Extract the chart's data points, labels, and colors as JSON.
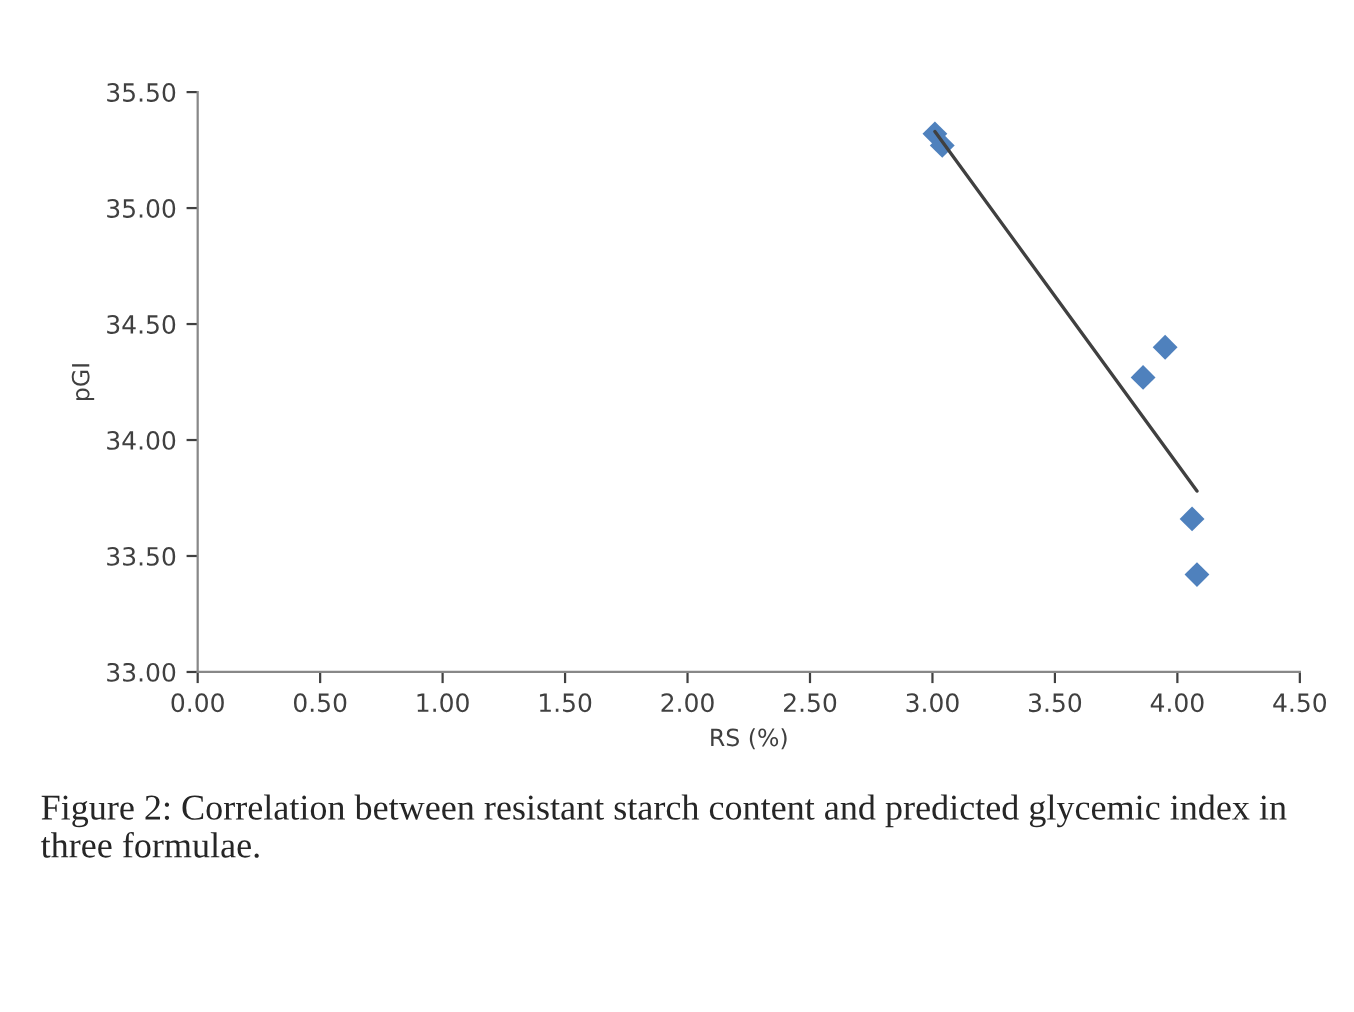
{
  "chart_data": {
    "type": "scatter",
    "xlabel": "RS (%)",
    "ylabel": "pGI",
    "x": [
      3.01,
      3.04,
      3.86,
      3.95,
      4.06,
      4.08
    ],
    "series": [
      {
        "color": "#4f81bd",
        "marker": "diamond",
        "values": [
          35.32,
          35.27,
          34.27,
          34.4,
          33.66,
          33.42
        ]
      },
      {
        "type": "line",
        "color": "#404040",
        "x": [
          3.01,
          4.08
        ],
        "values": [
          35.33,
          33.78
        ],
        "marker": "none"
      }
    ],
    "xlim": [
      0,
      4.5
    ],
    "ylim": [
      33,
      35.5
    ],
    "xticks": [
      {
        "value": 0,
        "label": "0.00"
      },
      {
        "value": 0.5,
        "label": "0.50"
      },
      {
        "value": 1,
        "label": "1.00"
      },
      {
        "value": 1.5,
        "label": "1.50"
      },
      {
        "value": 2,
        "label": "2.00"
      },
      {
        "value": 2.5,
        "label": "2.50"
      },
      {
        "value": 3,
        "label": "3.00"
      },
      {
        "value": 3.5,
        "label": "3.50"
      },
      {
        "value": 4,
        "label": "4.00"
      },
      {
        "value": 4.5,
        "label": "4.50"
      }
    ],
    "yticks": [
      {
        "value": 33,
        "label": "33.00"
      },
      {
        "value": 33.5,
        "label": "33.50"
      },
      {
        "value": 34,
        "label": "34.00"
      },
      {
        "value": 34.5,
        "label": "34.50"
      },
      {
        "value": 35,
        "label": "35.00"
      },
      {
        "value": 35.5,
        "label": "35.50"
      }
    ],
    "grid": false,
    "legend": false,
    "annotations": [
      "Figure 2: Correlation between resistant starch content and predicted glycemic index in three formulae."
    ]
  }
}
